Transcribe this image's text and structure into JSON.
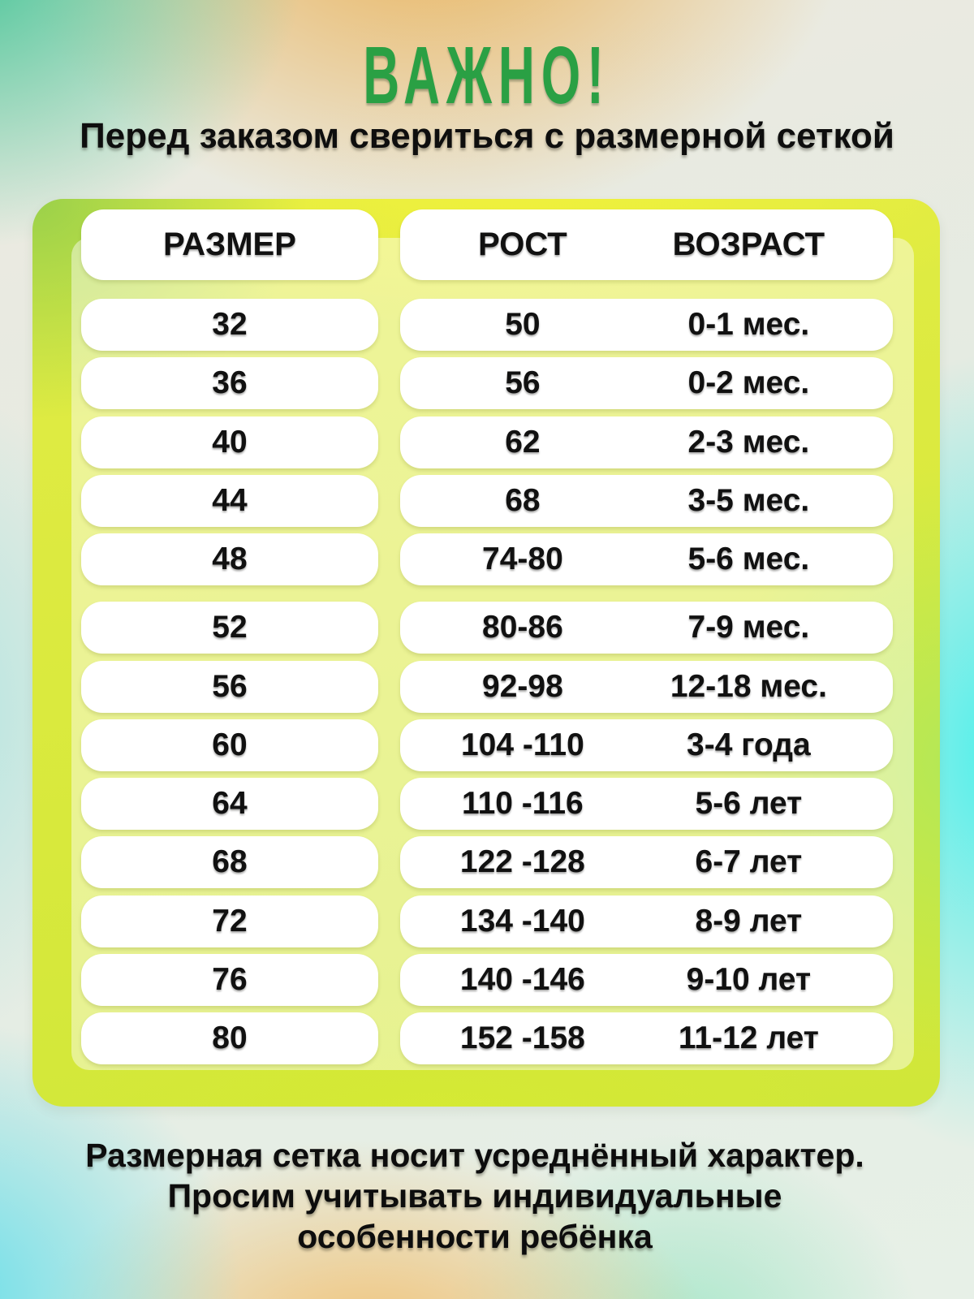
{
  "title": "ВАЖНО!",
  "subtitle": "Перед заказом свериться с размерной сеткой",
  "table": {
    "headers": {
      "size": "РАЗМЕР",
      "height": "РОСТ",
      "age": "ВОЗРАСТ"
    },
    "rows": [
      {
        "size": "32",
        "height": "50",
        "age": "0-1 мес."
      },
      {
        "size": "36",
        "height": "56",
        "age": "0-2 мес."
      },
      {
        "size": "40",
        "height": "62",
        "age": "2-3 мес."
      },
      {
        "size": "44",
        "height": "68",
        "age": "3-5 мес."
      },
      {
        "size": "48",
        "height": "74-80",
        "age": "5-6 мес."
      },
      {
        "size": "52",
        "height": "80-86",
        "age": "7-9 мес."
      },
      {
        "size": "56",
        "height": "92-98",
        "age": "12-18 мес."
      },
      {
        "size": "60",
        "height": "104 -110",
        "age": "3-4 года"
      },
      {
        "size": "64",
        "height": "110 -116",
        "age": "5-6 лет"
      },
      {
        "size": "68",
        "height": "122 -128",
        "age": "6-7 лет"
      },
      {
        "size": "72",
        "height": "134 -140",
        "age": "8-9 лет"
      },
      {
        "size": "76",
        "height": "140 -146",
        "age": "9-10 лет"
      },
      {
        "size": "80",
        "height": "152 -158",
        "age": "11-12 лет"
      }
    ]
  },
  "footer": {
    "lines": [
      "Размерная сетка носит усреднённый характер.",
      "Просим учитывать индивидуальные",
      "особенности ребёнка"
    ]
  },
  "colors": {
    "title_green": "#2aa044",
    "board_yellow": "#dcea3e",
    "pill_white": "#ffffff",
    "text_black": "#111111"
  },
  "chart_data": {
    "type": "table",
    "title": "ВАЖНО! Перед заказом свериться с размерной сеткой",
    "columns": [
      "РАЗМЕР",
      "РОСТ",
      "ВОЗРАСТ"
    ],
    "rows": [
      [
        "32",
        "50",
        "0-1 мес."
      ],
      [
        "36",
        "56",
        "0-2 мес."
      ],
      [
        "40",
        "62",
        "2-3 мес."
      ],
      [
        "44",
        "68",
        "3-5 мес."
      ],
      [
        "48",
        "74-80",
        "5-6 мес."
      ],
      [
        "52",
        "80-86",
        "7-9 мес."
      ],
      [
        "56",
        "92-98",
        "12-18 мес."
      ],
      [
        "60",
        "104 -110",
        "3-4 года"
      ],
      [
        "64",
        "110 -116",
        "5-6 лет"
      ],
      [
        "68",
        "122 -128",
        "6-7 лет"
      ],
      [
        "72",
        "134 -140",
        "8-9 лет"
      ],
      [
        "76",
        "140 -146",
        "9-10 лет"
      ],
      [
        "80",
        "152 -158",
        "11-12 лет"
      ]
    ],
    "note": "Размерная сетка носит усреднённый характер. Просим учитывать индивидуальные особенности ребёнка"
  }
}
